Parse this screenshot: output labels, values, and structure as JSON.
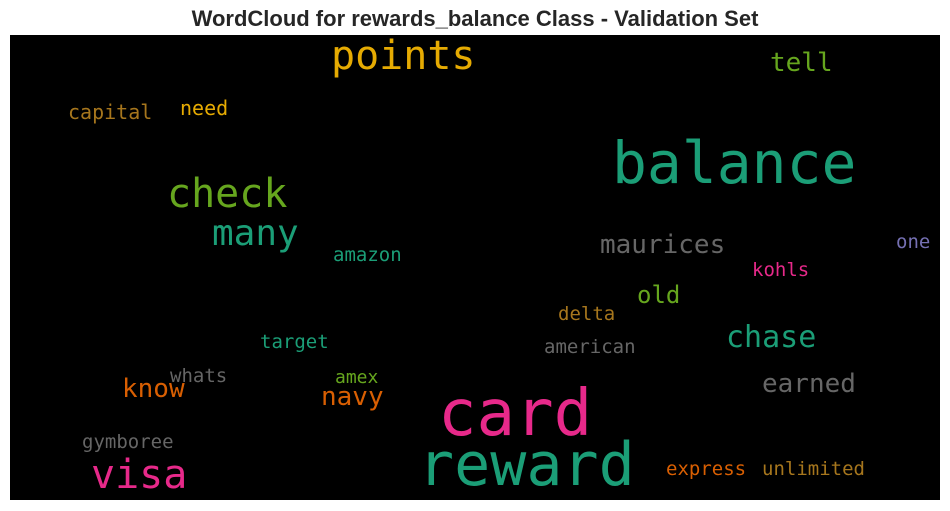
{
  "chart_data": {
    "type": "wordcloud",
    "title": "WordCloud for rewards_balance Class - Validation Set",
    "background": "#000000",
    "words": [
      {
        "text": "card",
        "weight": 1.0,
        "color": "#e7298a"
      },
      {
        "text": "reward",
        "weight": 1.0,
        "color": "#1b9e77"
      },
      {
        "text": "balance",
        "weight": 0.9,
        "color": "#1b9e77"
      },
      {
        "text": "visa",
        "weight": 0.6,
        "color": "#e7298a"
      },
      {
        "text": "points",
        "weight": 0.6,
        "color": "#e6ab02"
      },
      {
        "text": "check",
        "weight": 0.6,
        "color": "#66a61e"
      },
      {
        "text": "many",
        "weight": 0.5,
        "color": "#1b9e77"
      },
      {
        "text": "chase",
        "weight": 0.45,
        "color": "#1b9e77"
      },
      {
        "text": "maurices",
        "weight": 0.4,
        "color": "#666666"
      },
      {
        "text": "earned",
        "weight": 0.4,
        "color": "#666666"
      },
      {
        "text": "navy",
        "weight": 0.4,
        "color": "#d95f02"
      },
      {
        "text": "know",
        "weight": 0.4,
        "color": "#d95f02"
      },
      {
        "text": "tell",
        "weight": 0.4,
        "color": "#66a61e"
      },
      {
        "text": "old",
        "weight": 0.35,
        "color": "#66a61e"
      },
      {
        "text": "capital",
        "weight": 0.3,
        "color": "#a6761d"
      },
      {
        "text": "need",
        "weight": 0.3,
        "color": "#e6ab02"
      },
      {
        "text": "amazon",
        "weight": 0.28,
        "color": "#1b9e77"
      },
      {
        "text": "one",
        "weight": 0.28,
        "color": "#7570b3"
      },
      {
        "text": "kohls",
        "weight": 0.28,
        "color": "#e7298a"
      },
      {
        "text": "delta",
        "weight": 0.28,
        "color": "#a6761d"
      },
      {
        "text": "target",
        "weight": 0.28,
        "color": "#1b9e77"
      },
      {
        "text": "american",
        "weight": 0.28,
        "color": "#666666"
      },
      {
        "text": "whats",
        "weight": 0.28,
        "color": "#666666"
      },
      {
        "text": "amex",
        "weight": 0.26,
        "color": "#66a61e"
      },
      {
        "text": "gymboree",
        "weight": 0.28,
        "color": "#666666"
      },
      {
        "text": "express",
        "weight": 0.28,
        "color": "#d95f02"
      },
      {
        "text": "unlimited",
        "weight": 0.28,
        "color": "#a6761d"
      }
    ]
  }
}
